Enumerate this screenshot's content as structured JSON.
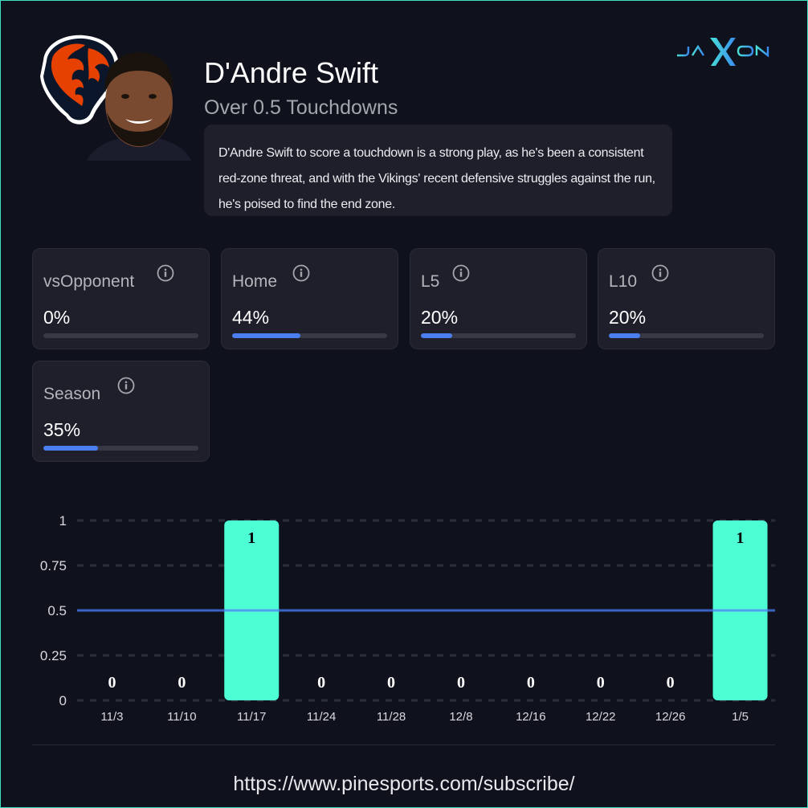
{
  "player": {
    "name": "D'Andre Swift",
    "prop": "Over 0.5 Touchdowns",
    "analysis": "D'Andre Swift to score a touchdown is a strong play, as he's been a consistent red-zone threat, and with the Vikings' recent defensive struggles against the run, he's poised to find the end zone."
  },
  "brand": {
    "logo_text": "JAXON"
  },
  "icons": {
    "info": "info-circle-icon",
    "team_logo": "bear-head-logo",
    "player_photo": "player-headshot"
  },
  "stats": [
    {
      "label": "vsOpponent",
      "value": "0%",
      "percent": 0
    },
    {
      "label": "Home",
      "value": "44%",
      "percent": 44
    },
    {
      "label": "L5",
      "value": "20%",
      "percent": 20
    },
    {
      "label": "L10",
      "value": "20%",
      "percent": 20
    },
    {
      "label": "Season",
      "value": "35%",
      "percent": 35
    }
  ],
  "colors": {
    "background": "#0f111d",
    "card": "#1e1f2b",
    "bar": "#4dfdd4",
    "progress": "#4b7ff0",
    "threshold_line": "#3a63c4",
    "border_accent": "#3fe0c0"
  },
  "chart_data": {
    "type": "bar",
    "categories": [
      "11/3",
      "11/10",
      "11/17",
      "11/24",
      "11/28",
      "12/8",
      "12/16",
      "12/22",
      "12/26",
      "1/5"
    ],
    "values": [
      0,
      0,
      1,
      0,
      0,
      0,
      0,
      0,
      0,
      1
    ],
    "data_labels": [
      "0",
      "0",
      "1",
      "0",
      "0",
      "0",
      "0",
      "0",
      "0",
      "1"
    ],
    "yticks": [
      "0",
      "0.25",
      "0.5",
      "0.75",
      "1"
    ],
    "ytick_values": [
      0,
      0.25,
      0.5,
      0.75,
      1
    ],
    "ylim": [
      0,
      1
    ],
    "threshold": 0.5,
    "grid": true,
    "title": "",
    "xlabel": "",
    "ylabel": ""
  },
  "footer": {
    "url": "https://www.pinesports.com/subscribe/"
  }
}
